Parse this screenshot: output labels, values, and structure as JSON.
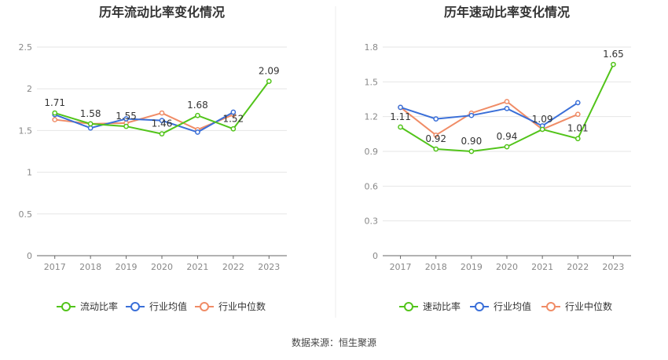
{
  "source_text": "数据来源：恒生聚源",
  "colors": {
    "main": "#52c41a",
    "avg": "#3a6fd8",
    "median": "#f08c66",
    "grid": "#e6e6e6",
    "axis": "#666666",
    "tick_text": "#888888"
  },
  "chart_data": [
    {
      "type": "line",
      "title": "历年流动比率变化情况",
      "categories": [
        "2017",
        "2018",
        "2019",
        "2020",
        "2021",
        "2022",
        "2023"
      ],
      "ylim": [
        0,
        2.5
      ],
      "yticks": [
        "0",
        "0.5",
        "1",
        "1.5",
        "2",
        "2.5"
      ],
      "grid": true,
      "legend_position": "bottom",
      "series": [
        {
          "name": "流动比率",
          "values": [
            1.71,
            1.58,
            1.55,
            1.46,
            1.68,
            1.52,
            2.09
          ],
          "labels": [
            "1.71",
            "1.58",
            "1.55",
            "1.46",
            "1.68",
            "1.52",
            "2.09"
          ]
        },
        {
          "name": "行业均值",
          "values": [
            1.69,
            1.53,
            1.64,
            1.62,
            1.48,
            1.72,
            null
          ]
        },
        {
          "name": "行业中位数",
          "values": [
            1.63,
            1.58,
            1.59,
            1.71,
            1.51,
            1.69,
            null
          ]
        }
      ]
    },
    {
      "type": "line",
      "title": "历年速动比率变化情况",
      "categories": [
        "2017",
        "2018",
        "2019",
        "2020",
        "2021",
        "2022",
        "2023"
      ],
      "ylim": [
        0,
        1.8
      ],
      "yticks": [
        "0",
        "0.3",
        "0.6",
        "0.9",
        "1.2",
        "1.5",
        "1.8"
      ],
      "grid": true,
      "legend_position": "bottom",
      "series": [
        {
          "name": "速动比率",
          "values": [
            1.11,
            0.92,
            0.9,
            0.94,
            1.09,
            1.01,
            1.65
          ],
          "labels": [
            "1.11",
            "0.92",
            "0.90",
            "0.94",
            "1.09",
            "1.01",
            "1.65"
          ]
        },
        {
          "name": "行业均值",
          "values": [
            1.28,
            1.18,
            1.21,
            1.27,
            1.12,
            1.32,
            null
          ]
        },
        {
          "name": "行业中位数",
          "values": [
            1.28,
            1.04,
            1.23,
            1.33,
            1.09,
            1.22,
            null
          ]
        }
      ]
    }
  ]
}
